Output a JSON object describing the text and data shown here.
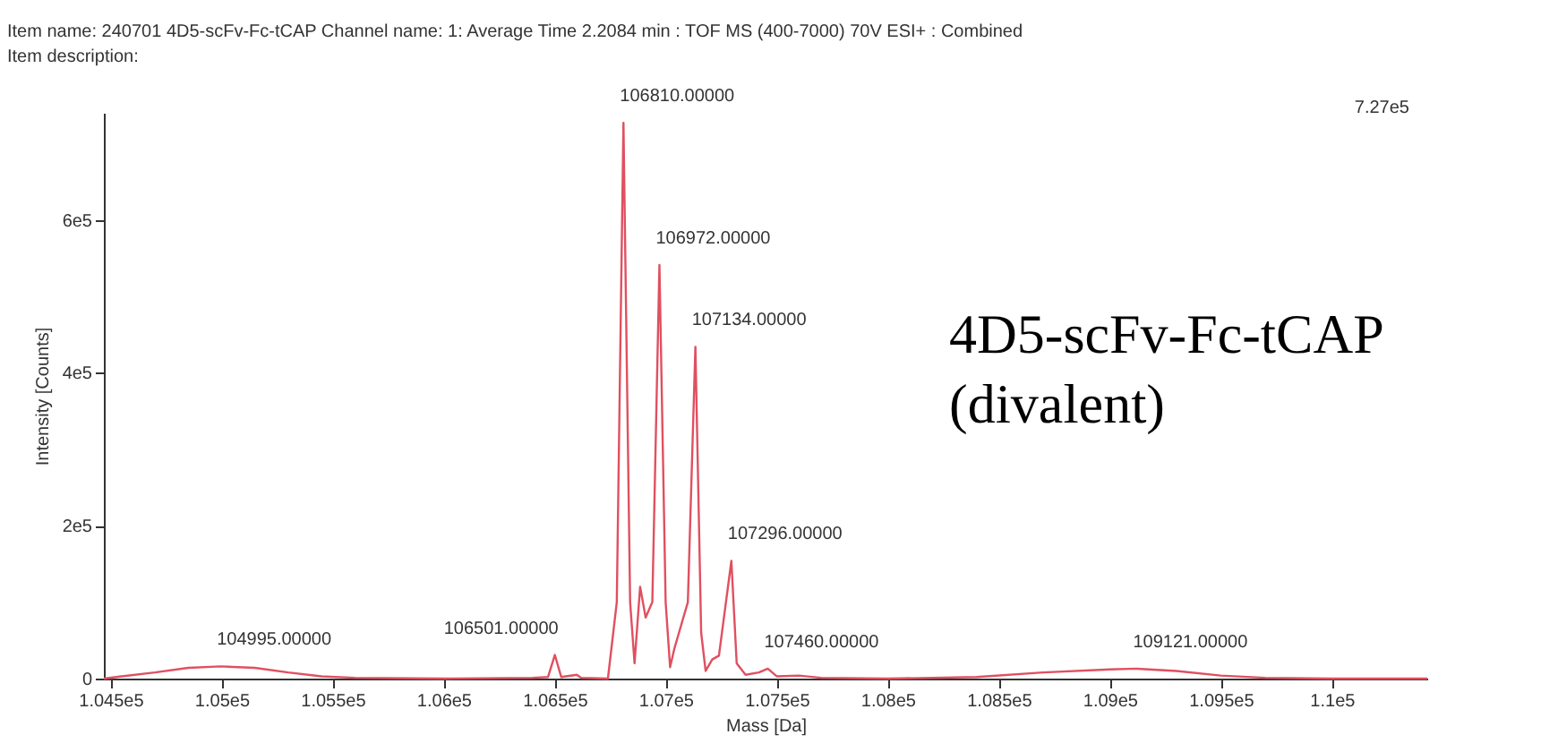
{
  "chart_data": {
    "type": "line",
    "title": "Item name: 240701 4D5-scFv-Fc-tCAP    Channel name: 1: Average Time 2.2084 min : TOF MS (400-7000) 70V ESI+ : Combined",
    "subtitle": "Item description:",
    "xlabel": "Mass [Da]",
    "ylabel": "Intensity [Counts]",
    "annotations": [
      "7.27e5",
      "4D5-scFv-Fc-tCAP\n(divalent)",
      {
        "text": "104995.00000",
        "x": 104995,
        "y": 16000
      },
      {
        "text": "106501.00000",
        "x": 106501,
        "y": 31000
      },
      {
        "text": "106810.00000",
        "x": 106810,
        "y": 727000
      },
      {
        "text": "106972.00000",
        "x": 106972,
        "y": 541000
      },
      {
        "text": "107134.00000",
        "x": 107134,
        "y": 434000
      },
      {
        "text": "107296.00000",
        "x": 107296,
        "y": 154000
      },
      {
        "text": "107460.00000",
        "x": 107460,
        "y": 13000
      },
      {
        "text": "109121.00000",
        "x": 109121,
        "y": 13000
      }
    ],
    "x": [
      104470,
      104550,
      104700,
      104850,
      104995,
      105150,
      105300,
      105450,
      105600,
      106000,
      106400,
      106470,
      106501,
      106530,
      106600,
      106620,
      106740,
      106780,
      106810,
      106840,
      106860,
      106885,
      106910,
      106940,
      106972,
      107000,
      107020,
      107040,
      107060,
      107100,
      107134,
      107160,
      107180,
      107210,
      107240,
      107296,
      107320,
      107360,
      107420,
      107460,
      107500,
      107600,
      107700,
      108000,
      108400,
      108700,
      109000,
      109121,
      109300,
      109500,
      109700,
      110000,
      110430
    ],
    "series": [
      {
        "color": "#e05060",
        "values": [
          0,
          3000,
          8000,
          14000,
          16000,
          14000,
          8000,
          3000,
          1000,
          0,
          1000,
          2000,
          31000,
          2000,
          5000,
          1000,
          0,
          100000,
          727000,
          100000,
          20000,
          120000,
          80000,
          100000,
          541000,
          100000,
          15000,
          40000,
          60000,
          100000,
          434000,
          60000,
          10000,
          25000,
          30000,
          154000,
          20000,
          5000,
          8000,
          13000,
          3000,
          4000,
          1000,
          0,
          2000,
          8000,
          12000,
          13000,
          10000,
          4000,
          1000,
          0,
          0
        ]
      }
    ],
    "xlim": [
      104470,
      110430
    ],
    "xticks": [
      {
        "value": 104500,
        "label": "1.045e5"
      },
      {
        "value": 105000,
        "label": "1.05e5"
      },
      {
        "value": 105500,
        "label": "1.055e5"
      },
      {
        "value": 106000,
        "label": "1.06e5"
      },
      {
        "value": 106500,
        "label": "1.065e5"
      },
      {
        "value": 107000,
        "label": "1.07e5"
      },
      {
        "value": 107500,
        "label": "1.075e5"
      },
      {
        "value": 108000,
        "label": "1.08e5"
      },
      {
        "value": 108500,
        "label": "1.085e5"
      },
      {
        "value": 109000,
        "label": "1.09e5"
      },
      {
        "value": 109500,
        "label": "1.095e5"
      },
      {
        "value": 110000,
        "label": "1.1e5"
      }
    ],
    "ylim": [
      0,
      740000
    ],
    "yticks": [
      0,
      {
        "value": 200000,
        "label": "2e5"
      },
      {
        "value": 400000,
        "label": "4e5"
      },
      {
        "value": 600000,
        "label": "6e5"
      }
    ],
    "grid": false
  }
}
